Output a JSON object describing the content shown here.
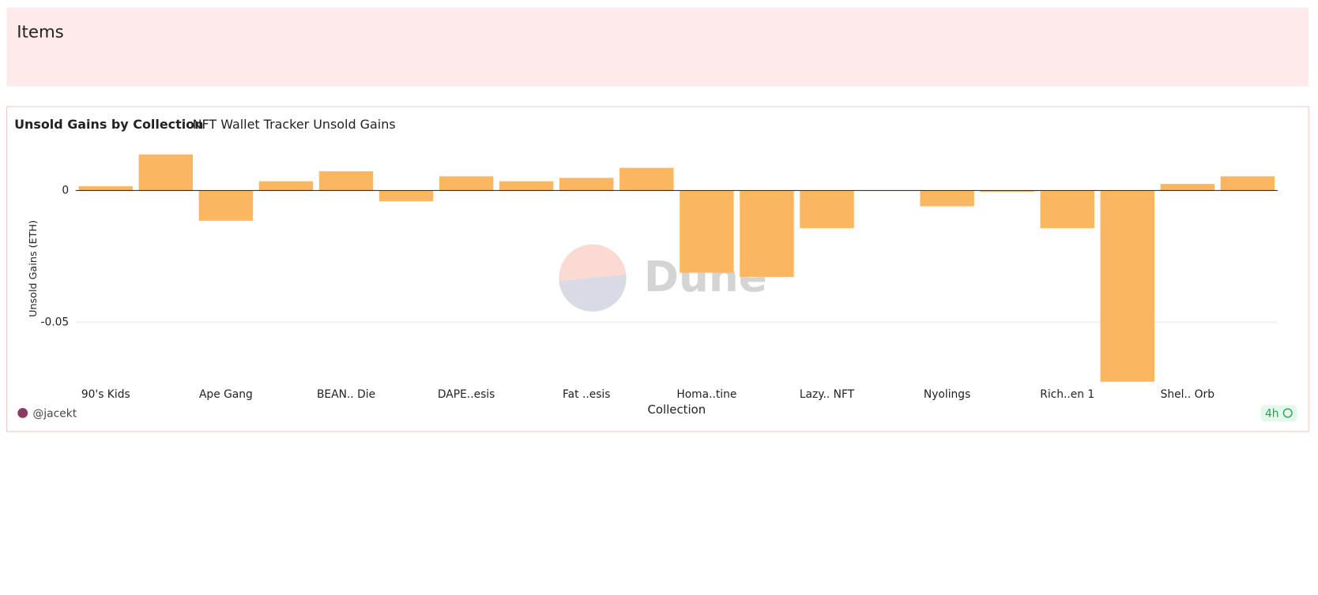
{
  "header": {
    "title": "Items"
  },
  "chart_data": {
    "type": "bar",
    "title": "Unsold Gains by Collection",
    "subtitle": "NFT Wallet Tracker Unsold Gains",
    "x_label": "Collection",
    "y_label": "Unsold Gains (ETH)",
    "color": "#fbb662",
    "categories": [
      "90's Kids",
      null,
      "Ape Gang",
      null,
      "BEAN.. Die",
      null,
      "DAPE..esis",
      null,
      "Fat ..esis",
      null,
      "Homa..tine",
      null,
      "Lazy.. NFT",
      null,
      "Nyolings",
      null,
      "Rich..en 1",
      null,
      "Shel.. Orb",
      null
    ],
    "values": [
      0.0016,
      0.0137,
      -0.0115,
      0.0035,
      0.0073,
      -0.0041,
      0.0054,
      0.0035,
      0.0048,
      0.0086,
      -0.0312,
      -0.0328,
      -0.0143,
      -0.0002,
      -0.006,
      -0.0005,
      -0.0143,
      -0.0726,
      0.0025,
      0.0054
    ],
    "ylim": [
      -0.073,
      0.014
    ],
    "yticks": [
      -0.05,
      0
    ],
    "grid": true
  },
  "footer": {
    "author": "@jacekt",
    "freshness": "4h",
    "watermark": "Dune"
  }
}
